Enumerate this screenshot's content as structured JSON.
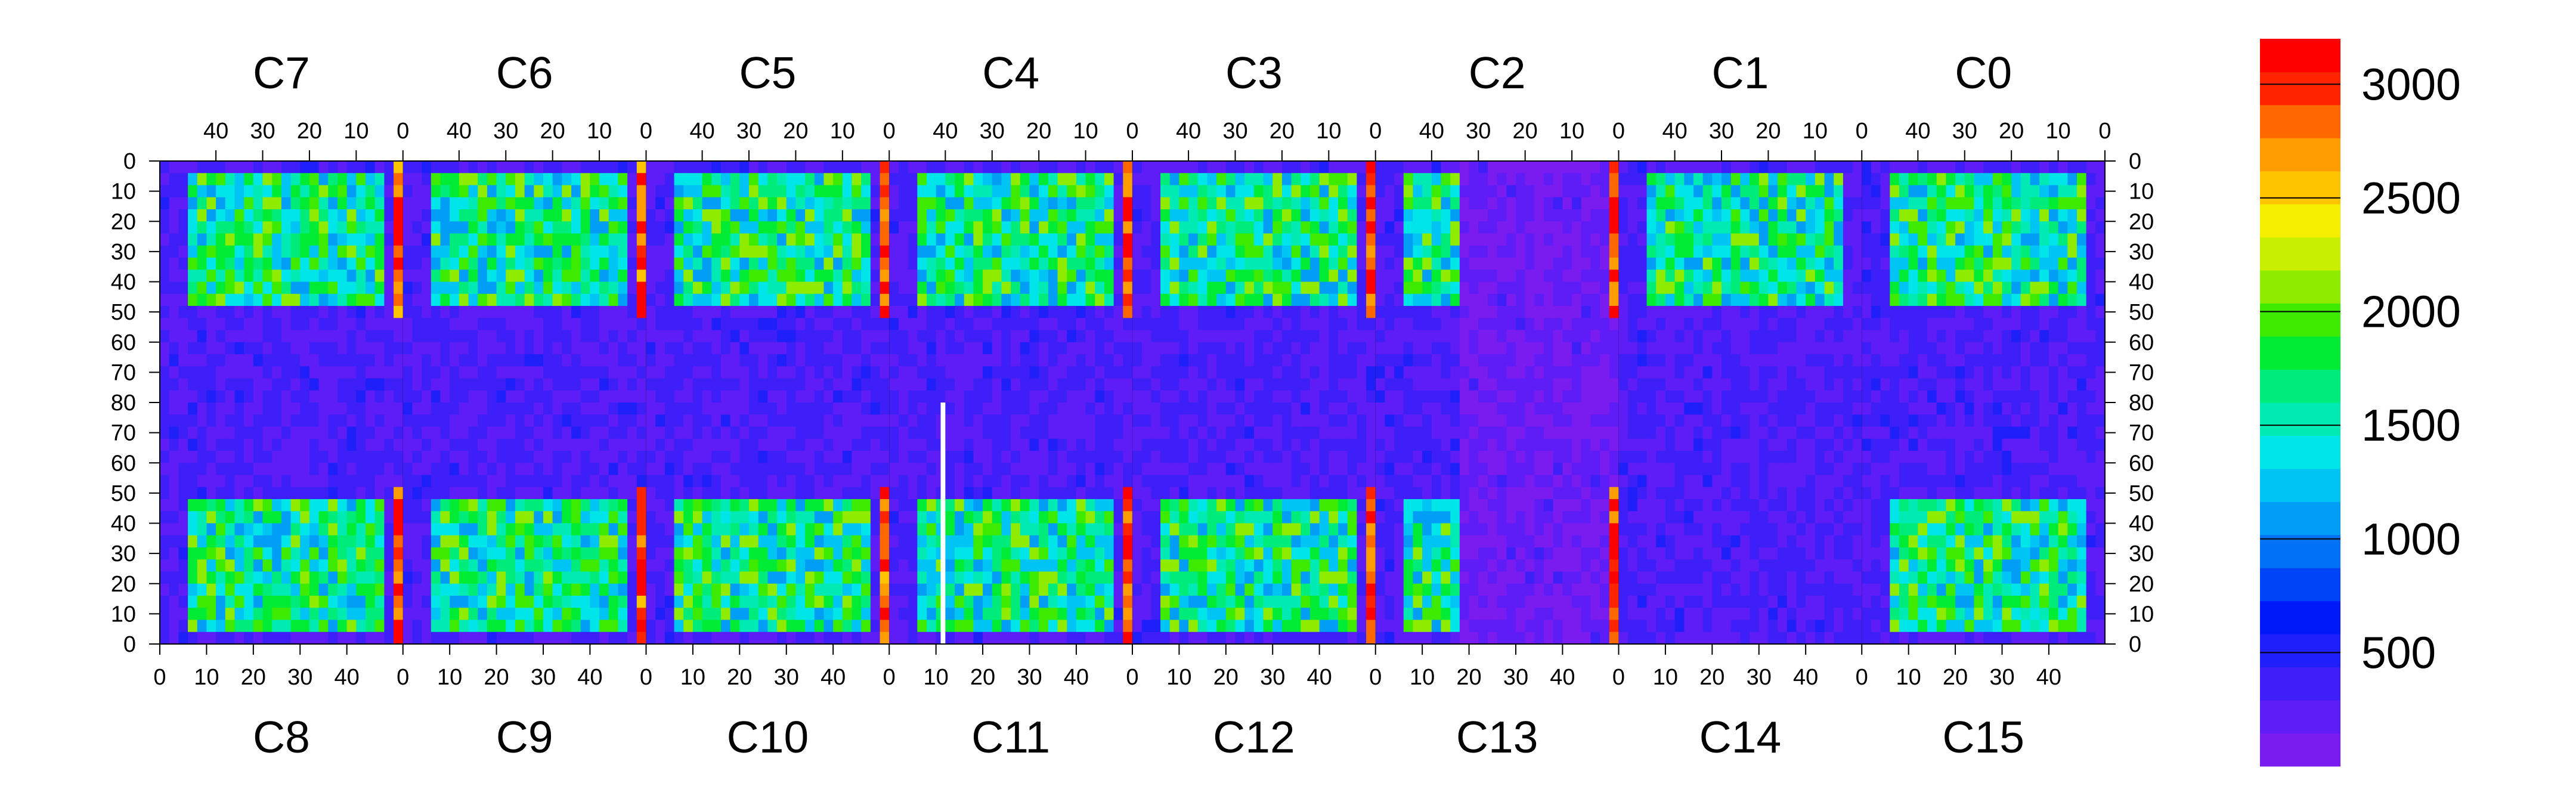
{
  "chart_data": {
    "type": "heatmap",
    "chips_top": [
      {
        "name": "C7",
        "ticks": [
          "40",
          "30",
          "20",
          "10",
          "0"
        ]
      },
      {
        "name": "C6",
        "ticks": [
          "40",
          "30",
          "20",
          "10",
          "0"
        ]
      },
      {
        "name": "C5",
        "ticks": [
          "40",
          "30",
          "20",
          "10",
          "0"
        ]
      },
      {
        "name": "C4",
        "ticks": [
          "40",
          "30",
          "20",
          "10",
          "0"
        ]
      },
      {
        "name": "C3",
        "ticks": [
          "40",
          "30",
          "20",
          "10",
          "0"
        ]
      },
      {
        "name": "C2",
        "ticks": [
          "40",
          "30",
          "20",
          "10",
          "0"
        ]
      },
      {
        "name": "C1",
        "ticks": [
          "40",
          "30",
          "20",
          "10",
          "0"
        ]
      },
      {
        "name": "C0",
        "ticks": [
          "40",
          "30",
          "20",
          "10",
          "0"
        ]
      }
    ],
    "chips_bottom": [
      {
        "name": "C8",
        "ticks": [
          "0",
          "10",
          "20",
          "30",
          "40"
        ]
      },
      {
        "name": "C9",
        "ticks": [
          "0",
          "10",
          "20",
          "30",
          "40"
        ]
      },
      {
        "name": "C10",
        "ticks": [
          "0",
          "10",
          "20",
          "30",
          "40"
        ]
      },
      {
        "name": "C11",
        "ticks": [
          "0",
          "10",
          "20",
          "30",
          "40"
        ]
      },
      {
        "name": "C12",
        "ticks": [
          "0",
          "10",
          "20",
          "30",
          "40"
        ]
      },
      {
        "name": "C13",
        "ticks": [
          "0",
          "10",
          "20",
          "30",
          "40"
        ]
      },
      {
        "name": "C14",
        "ticks": [
          "0",
          "10",
          "20",
          "30",
          "40"
        ]
      },
      {
        "name": "C15",
        "ticks": [
          "0",
          "10",
          "20",
          "30",
          "40"
        ]
      }
    ],
    "chip_columns": 52,
    "row_ticks_top_half": [
      "0",
      "10",
      "20",
      "30",
      "40",
      "50",
      "60",
      "70"
    ],
    "row_ticks_bottom_half": [
      "80",
      "70",
      "60",
      "50",
      "40",
      "30",
      "20",
      "10",
      "0"
    ],
    "rows_per_half": 80,
    "colorbar": {
      "min": 0,
      "max": 3200,
      "ticks": [
        500,
        1000,
        1500,
        2000,
        2500,
        3000
      ],
      "tick_labels": [
        "500",
        "1000",
        "1500",
        "2000",
        "2500",
        "3000"
      ],
      "levels": 20,
      "colors": [
        "#7a1cf0",
        "#5e1df6",
        "#3f1ff8",
        "#1f1ff9",
        "#001af7",
        "#0044f8",
        "#0072f6",
        "#009ff5",
        "#00c4f3",
        "#00e6e8",
        "#00ebb3",
        "#00ec7a",
        "#00ec34",
        "#3ceb00",
        "#8fec00",
        "#c8ee00",
        "#f6ee00",
        "#ffc400",
        "#ff9c00",
        "#ff6800",
        "#ff2400",
        "#ff0000"
      ]
    },
    "regions_description_values": {
      "background_level": 300,
      "active_plateau_level": 1600,
      "hot_column_level": 2900,
      "dead_chip_level": 150
    }
  }
}
